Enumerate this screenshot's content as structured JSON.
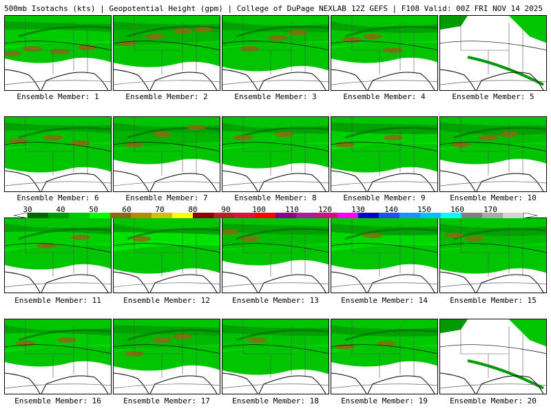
{
  "header": {
    "left": "500mb Isotachs (kts) | Geopotential Height (gpm) | College of DuPage NEXLAB",
    "right": "12Z GEFS | F108 Valid: 00Z FRI NOV 14 2025"
  },
  "colorbar": {
    "labels": [
      "30",
      "40",
      "50",
      "60",
      "70",
      "80",
      "90",
      "100",
      "110",
      "120",
      "130",
      "140",
      "150",
      "160",
      "170"
    ],
    "colors": [
      "#006400",
      "#009900",
      "#00c400",
      "#00ff00",
      "#8b6914",
      "#b8860b",
      "#d4c000",
      "#ffff00",
      "#8b0000",
      "#b22222",
      "#dc143c",
      "#ff0000",
      "#8b008b",
      "#a020a0",
      "#c71585",
      "#ff00ff",
      "#0000cd",
      "#1e50ff",
      "#1e90ff",
      "#00bfff",
      "#00ffff",
      "#808080",
      "#a9a9a9",
      "#d3d3d3"
    ]
  },
  "panels": [
    {
      "label": "Ensemble Member: 1"
    },
    {
      "label": "Ensemble Member: 2"
    },
    {
      "label": "Ensemble Member: 3"
    },
    {
      "label": "Ensemble Member: 4"
    },
    {
      "label": "Ensemble Member: 5"
    },
    {
      "label": "Ensemble Member: 6"
    },
    {
      "label": "Ensemble Member: 7"
    },
    {
      "label": "Ensemble Member: 8"
    },
    {
      "label": "Ensemble Member: 9"
    },
    {
      "label": "Ensemble Member: 10"
    },
    {
      "label": "Ensemble Member: 11"
    },
    {
      "label": "Ensemble Member: 12"
    },
    {
      "label": "Ensemble Member: 13"
    },
    {
      "label": "Ensemble Member: 14"
    },
    {
      "label": "Ensemble Member: 15"
    },
    {
      "label": "Ensemble Member: 16"
    },
    {
      "label": "Ensemble Member: 17"
    },
    {
      "label": "Ensemble Member: 18"
    },
    {
      "label": "Ensemble Member: 19"
    },
    {
      "label": "Ensemble Member: 20"
    }
  ]
}
